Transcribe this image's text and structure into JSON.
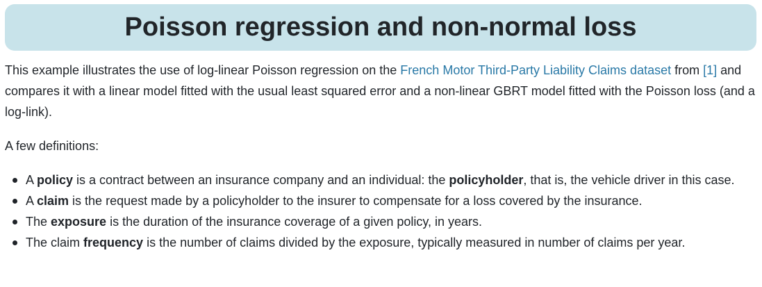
{
  "title": "Poisson regression and non-normal loss",
  "intro": {
    "t1": "This example illustrates the use of log-linear Poisson regression on the ",
    "link_dataset": "French Motor Third-Party Liability Claims dataset",
    "t2": " from ",
    "ref": "[1]",
    "t3": " and compares it with a linear model fitted with the usual least squared error and a non-linear GBRT model fitted with the Poisson loss (and a log-link)."
  },
  "defs_lead": "A few definitions:",
  "definitions": [
    {
      "pre": "A ",
      "term": "policy",
      "mid": " is a contract between an insurance company and an individual: the ",
      "term2": "policyholder",
      "post": ", that is, the vehicle driver in this case."
    },
    {
      "pre": "A ",
      "term": "claim",
      "post": " is the request made by a policyholder to the insurer to compensate for a loss covered by the insurance."
    },
    {
      "pre": "The ",
      "term": "exposure",
      "post": " is the duration of the insurance coverage of a given policy, in years."
    },
    {
      "pre": "The claim ",
      "term": "frequency",
      "post": " is the number of claims divided by the exposure, typically measured in number of claims per year."
    }
  ]
}
